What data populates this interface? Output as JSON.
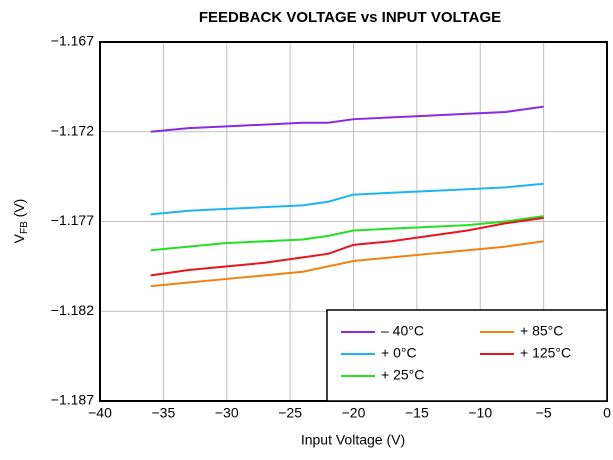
{
  "chart_data": {
    "type": "line",
    "title": "FEEDBACK VOLTAGE vs INPUT VOLTAGE",
    "x_label": "Input Voltage (V)",
    "y_label": {
      "main": "V",
      "sub": "FB",
      "unit": " (V)"
    },
    "x": [
      -36,
      -33,
      -30,
      -27,
      -24,
      -22,
      -20,
      -17,
      -14,
      -11,
      -8,
      -5
    ],
    "series": [
      {
        "name": "– 40°C",
        "color": "#8a2be2",
        "values": [
          -1.172,
          -1.1718,
          -1.1717,
          -1.1716,
          -1.1715,
          -1.1715,
          -1.1713,
          -1.1712,
          -1.1711,
          -1.171,
          -1.1709,
          -1.1706
        ]
      },
      {
        "name": "+ 0°C",
        "color": "#1eb4f0",
        "values": [
          -1.1766,
          -1.1764,
          -1.1763,
          -1.1762,
          -1.1761,
          -1.1759,
          -1.1755,
          -1.1754,
          -1.1753,
          -1.1752,
          -1.1751,
          -1.1749
        ]
      },
      {
        "name": "+ 25°C",
        "color": "#22e022",
        "values": [
          -1.1786,
          -1.1784,
          -1.1782,
          -1.1781,
          -1.178,
          -1.1778,
          -1.1775,
          -1.1774,
          -1.1773,
          -1.1772,
          -1.177,
          -1.1767
        ]
      },
      {
        "name": "+ 85°C",
        "color": "#f0820f",
        "values": [
          -1.1806,
          -1.1804,
          -1.1802,
          -1.18,
          -1.1798,
          -1.1795,
          -1.1792,
          -1.179,
          -1.1788,
          -1.1786,
          -1.1784,
          -1.1781
        ]
      },
      {
        "name": "+ 125°C",
        "color": "#e8141e",
        "values": [
          -1.18,
          -1.1797,
          -1.1795,
          -1.1793,
          -1.179,
          -1.1788,
          -1.1783,
          -1.1781,
          -1.1778,
          -1.1775,
          -1.1771,
          -1.1768
        ]
      }
    ],
    "xlim": [
      -40,
      0
    ],
    "xticks": [
      {
        "value": -40,
        "label": "−40"
      },
      {
        "value": -35,
        "label": "−35"
      },
      {
        "value": -30,
        "label": "−30"
      },
      {
        "value": -25,
        "label": "−25"
      },
      {
        "value": -20,
        "label": "−20"
      },
      {
        "value": -15,
        "label": "−15"
      },
      {
        "value": -10,
        "label": "−10"
      },
      {
        "value": -5,
        "label": "−5"
      },
      0
    ],
    "ylim": [
      -1.187,
      -1.167
    ],
    "yticks": [
      {
        "value": -1.187,
        "label": "−1.187"
      },
      {
        "value": -1.182,
        "label": "−1.182"
      },
      {
        "value": -1.177,
        "label": "−1.177"
      },
      {
        "value": -1.172,
        "label": "−1.172"
      },
      {
        "value": -1.167,
        "label": "−1.167"
      }
    ],
    "grid": true,
    "legend": "lower right"
  }
}
